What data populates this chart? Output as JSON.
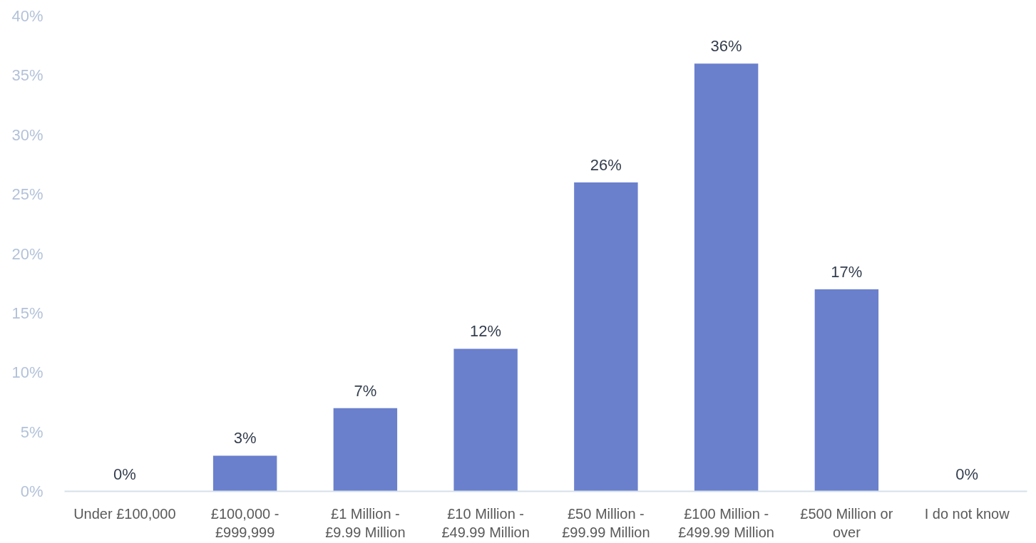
{
  "chart_data": {
    "type": "bar",
    "categories": [
      "Under £100,000",
      "£100,000 - £999,999",
      "£1 Million - £9.99 Million",
      "£10 Million - £49.99 Million",
      "£50 Million - £99.99 Million",
      "£100 Million - £499.99 Million",
      "£500 Million or over",
      "I do not know"
    ],
    "values": [
      0,
      3,
      7,
      12,
      26,
      36,
      17,
      0
    ],
    "value_labels": [
      "0%",
      "3%",
      "7%",
      "12%",
      "26%",
      "36%",
      "17%",
      "0%"
    ],
    "color": "#6a80cd",
    "ylim": [
      0,
      40
    ],
    "yticks": [
      {
        "value": 0,
        "label": "0%"
      },
      {
        "value": 5,
        "label": "5%"
      },
      {
        "value": 10,
        "label": "10%"
      },
      {
        "value": 15,
        "label": "15%"
      },
      {
        "value": 20,
        "label": "20%"
      },
      {
        "value": 25,
        "label": "25%"
      },
      {
        "value": 30,
        "label": "30%"
      },
      {
        "value": 35,
        "label": "35%"
      },
      {
        "value": 40,
        "label": "40%"
      }
    ]
  }
}
